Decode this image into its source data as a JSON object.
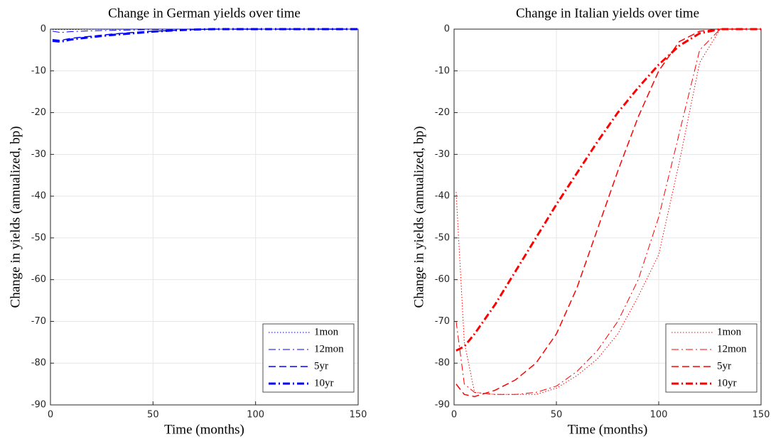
{
  "chart_data": [
    {
      "type": "line",
      "title": "Change in German yields over time",
      "xlabel": "Time (months)",
      "ylabel": "Change in yields (annualized, bp)",
      "x": [
        1,
        5,
        10,
        20,
        30,
        40,
        50,
        60,
        70,
        80,
        90,
        100,
        110,
        120,
        130,
        140,
        150
      ],
      "series": [
        {
          "name": "1mon",
          "color": "#0000ff",
          "linestyle": "dotted",
          "linewidth": 1,
          "values": [
            -0.1,
            -0.1,
            -0.1,
            -0.05,
            -0.05,
            0,
            0,
            0,
            0,
            0,
            0,
            0,
            0,
            0,
            0,
            0,
            0
          ]
        },
        {
          "name": "12mon",
          "color": "#0000ff",
          "linestyle": "dashdot",
          "linewidth": 1,
          "values": [
            -0.5,
            -0.8,
            -0.6,
            -0.4,
            -0.3,
            -0.2,
            -0.1,
            -0.05,
            0,
            0,
            0,
            0,
            0,
            0,
            0,
            0,
            0
          ]
        },
        {
          "name": "5yr",
          "color": "#0000ff",
          "linestyle": "dashed",
          "linewidth": 1.5,
          "values": [
            -2.5,
            -2.7,
            -2.2,
            -1.7,
            -1.2,
            -0.8,
            -0.5,
            -0.3,
            -0.1,
            0,
            0,
            0,
            0,
            0,
            0,
            0,
            0
          ]
        },
        {
          "name": "10yr",
          "color": "#0000ff",
          "linestyle": "dashdot",
          "linewidth": 3,
          "values": [
            -2.8,
            -3,
            -2.5,
            -1.9,
            -1.4,
            -1,
            -0.6,
            -0.3,
            -0.1,
            0,
            0,
            0,
            0,
            0,
            0,
            0,
            0
          ]
        }
      ],
      "xlim": [
        0,
        150
      ],
      "ylim": [
        -90,
        0
      ],
      "xticks": [
        0,
        50,
        100,
        150
      ],
      "yticks": [
        -90,
        -80,
        -70,
        -60,
        -50,
        -40,
        -30,
        -20,
        -10,
        0
      ],
      "grid": true,
      "legend": "lower right"
    },
    {
      "type": "line",
      "title": "Change in Italian yields over time",
      "xlabel": "Time (months)",
      "ylabel": "Change in yields (annualized, bp)",
      "x": [
        1,
        5,
        10,
        20,
        30,
        40,
        50,
        60,
        70,
        80,
        90,
        100,
        110,
        120,
        130,
        140,
        150
      ],
      "series": [
        {
          "name": "1mon",
          "color": "#ff0000",
          "linestyle": "dotted",
          "linewidth": 1,
          "values": [
            -39,
            -75,
            -87,
            -87.5,
            -87.5,
            -87.5,
            -86,
            -83,
            -79,
            -73,
            -64,
            -54,
            -32,
            -8,
            0,
            0,
            0
          ]
        },
        {
          "name": "12mon",
          "color": "#ff0000",
          "linestyle": "dashdot",
          "linewidth": 1,
          "values": [
            -70,
            -85,
            -87,
            -87.5,
            -87.5,
            -87,
            -85.5,
            -82,
            -77,
            -70,
            -60,
            -45,
            -25,
            -5,
            0,
            0,
            0
          ]
        },
        {
          "name": "5yr",
          "color": "#ff0000",
          "linestyle": "dashed",
          "linewidth": 1.5,
          "values": [
            -85,
            -87.5,
            -88,
            -86.5,
            -84,
            -80,
            -73,
            -62,
            -48,
            -34,
            -21,
            -10,
            -3,
            -0.5,
            0,
            0,
            0
          ]
        },
        {
          "name": "10yr",
          "color": "#ff0000",
          "linestyle": "dashdot",
          "linewidth": 3,
          "values": [
            -77,
            -76,
            -73,
            -66,
            -58,
            -50,
            -42,
            -34.5,
            -27,
            -20,
            -14,
            -8.5,
            -4,
            -1,
            0,
            0,
            0
          ]
        }
      ],
      "xlim": [
        0,
        150
      ],
      "ylim": [
        -90,
        0
      ],
      "xticks": [
        0,
        50,
        100,
        150
      ],
      "yticks": [
        -90,
        -80,
        -70,
        -60,
        -50,
        -40,
        -30,
        -20,
        -10,
        0
      ],
      "grid": true,
      "legend": "lower right"
    }
  ]
}
